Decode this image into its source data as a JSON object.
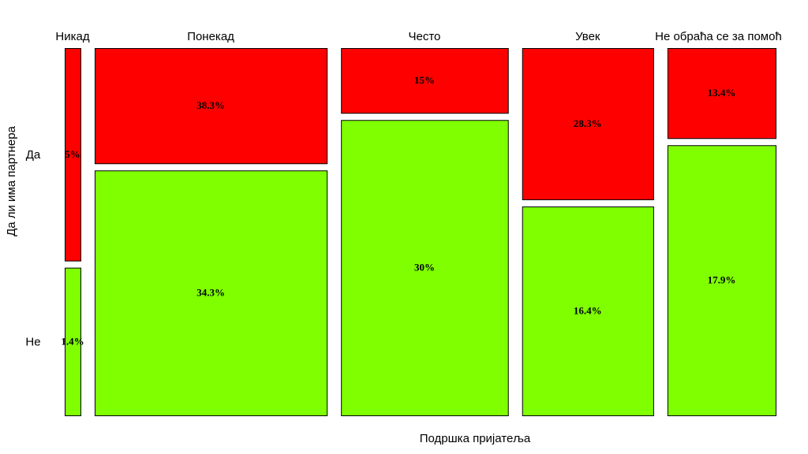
{
  "chart_data": {
    "type": "mosaic",
    "xlabel": "Подршка пријатеља",
    "ylabel": "Да ли има партнера",
    "categories": [
      "Никад",
      "Понекад",
      "Често",
      "Увек",
      "Не обраћа се за помоћ"
    ],
    "rows": [
      "Да",
      "Не"
    ],
    "column_widths": [
      0.022,
      0.324,
      0.233,
      0.183,
      0.151
    ],
    "cells": [
      {
        "column": "Никад",
        "values": {
          "Да": 0.59,
          "Не": 0.41
        },
        "labels": {
          "Да": "5%",
          "Не": "1.4%"
        }
      },
      {
        "column": "Понекад",
        "values": {
          "Да": 0.32,
          "Не": 0.68
        },
        "labels": {
          "Да": "38.3%",
          "Не": "34.3%"
        }
      },
      {
        "column": "Често",
        "values": {
          "Да": 0.18,
          "Не": 0.82
        },
        "labels": {
          "Да": "15%",
          "Не": "30%"
        }
      },
      {
        "column": "Увек",
        "values": {
          "Да": 0.42,
          "Не": 0.58
        },
        "labels": {
          "Да": "28.3%",
          "Не": "16.4%"
        }
      },
      {
        "column": "Не обраћа се за помоћ",
        "values": {
          "Да": 0.25,
          "Не": 0.75
        },
        "labels": {
          "Да": "13.4%",
          "Не": "17.9%"
        }
      }
    ],
    "colors": {
      "Да": "#ff0000",
      "Не": "#7fff00"
    },
    "border_color": "#000000"
  }
}
